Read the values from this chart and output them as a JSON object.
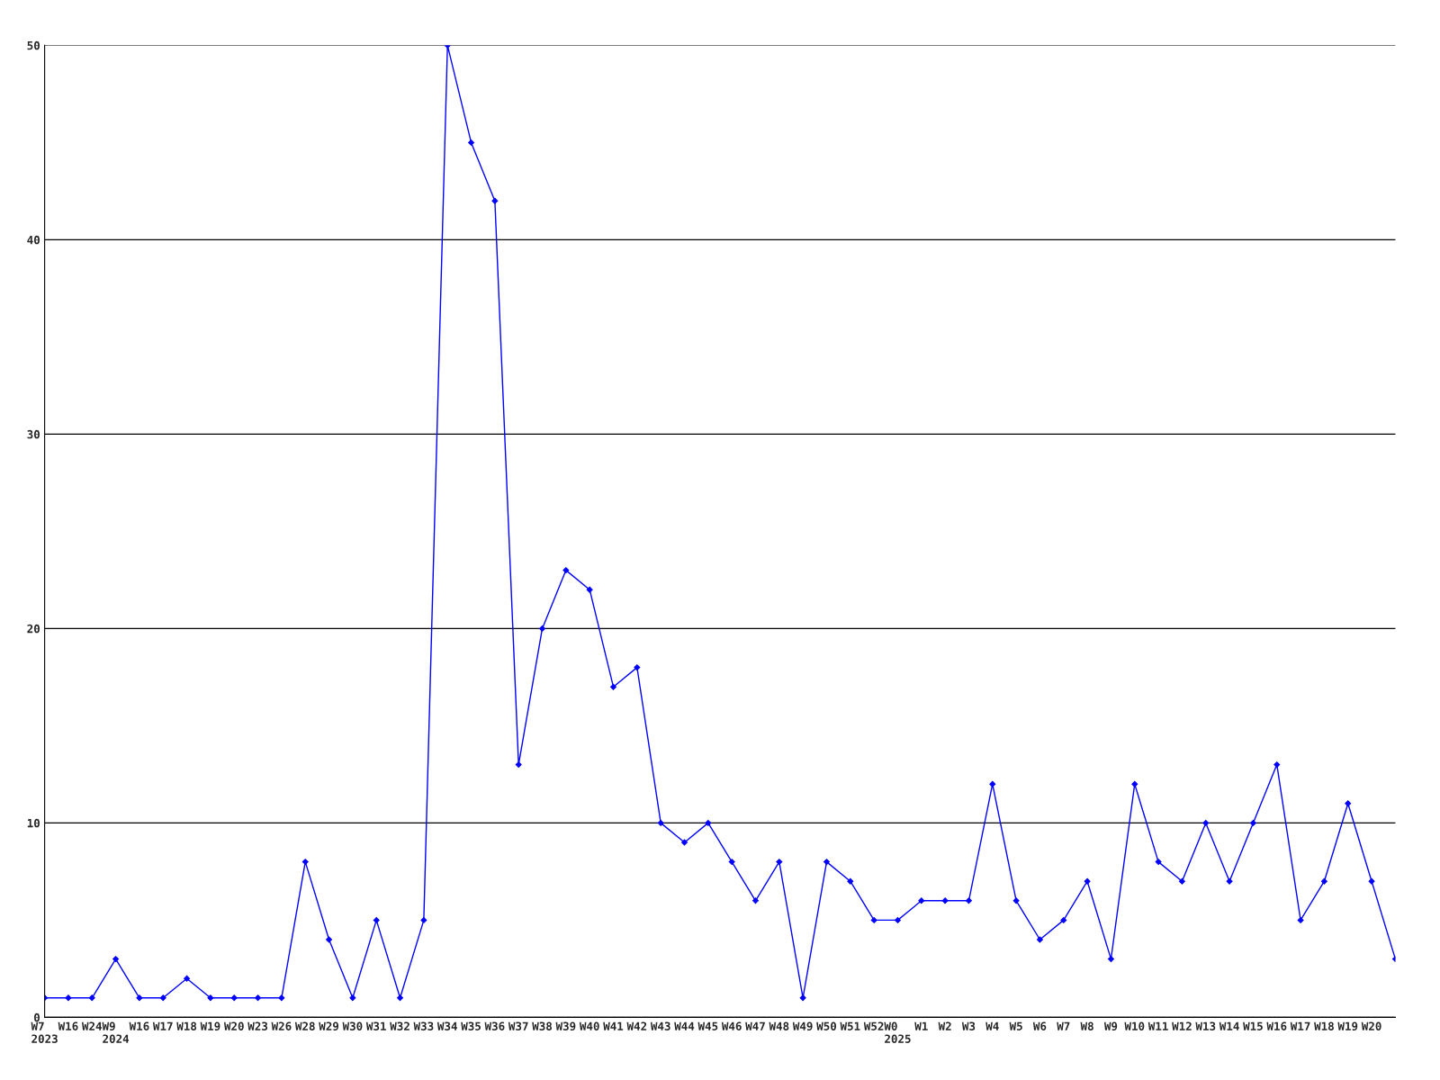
{
  "chart_data": {
    "type": "line",
    "categories": [
      "W7\n2023",
      "W16",
      "W24",
      "W9\n2024",
      "W16",
      "W17",
      "W18",
      "W19",
      "W20",
      "W23",
      "W26",
      "W28",
      "W29",
      "W30",
      "W31",
      "W32",
      "W33",
      "W34",
      "W35",
      "W36",
      "W37",
      "W38",
      "W39",
      "W40",
      "W41",
      "W42",
      "W43",
      "W44",
      "W45",
      "W46",
      "W47",
      "W48",
      "W49",
      "W50",
      "W51",
      "W52",
      "W0\n2025",
      "W1",
      "W2",
      "W3",
      "W4",
      "W5",
      "W6",
      "W7",
      "W8",
      "W9",
      "W10",
      "W11",
      "W12",
      "W13",
      "W14",
      "W15",
      "W16",
      "W17",
      "W18",
      "W19",
      "W20",
      null
    ],
    "series": [
      {
        "color": "#0000ff",
        "values": [
          1,
          1,
          1,
          3,
          1,
          1,
          2,
          1,
          1,
          1,
          1,
          8,
          4,
          1,
          5,
          1,
          5,
          50,
          45,
          42,
          13,
          20,
          23,
          22,
          17,
          18,
          10,
          9,
          10,
          8,
          6,
          8,
          1,
          8,
          7,
          5,
          5,
          6,
          6,
          6,
          12,
          6,
          4,
          5,
          7,
          3,
          12,
          8,
          7,
          10,
          7,
          10,
          13,
          5,
          7,
          11,
          7,
          3
        ]
      }
    ],
    "ylim": [
      0,
      50
    ],
    "yticks": [
      0,
      10,
      20,
      30,
      40,
      50
    ],
    "grid": "y",
    "marker": "diamond",
    "line_style": "solid",
    "legend": false
  }
}
